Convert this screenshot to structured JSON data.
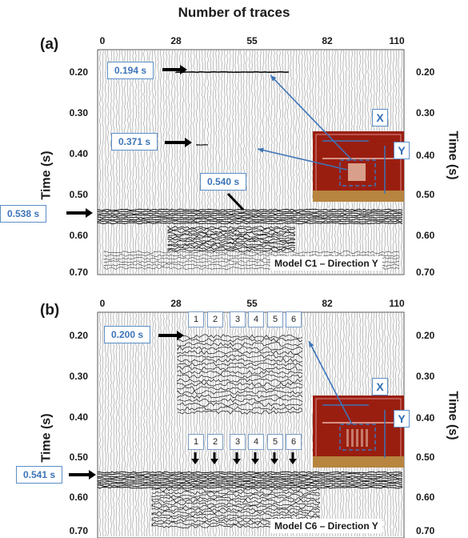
{
  "figure": {
    "title": "Number of traces",
    "x_ticks": [
      "0",
      "28",
      "55",
      "82",
      "110"
    ],
    "y_ticks": [
      "0.20",
      "0.30",
      "0.40",
      "0.50",
      "0.60",
      "0.70"
    ],
    "y_label": "Time (s)",
    "axis_markers": [
      "X",
      "Y"
    ]
  },
  "panel_a": {
    "label": "(a)",
    "caption": "Model C1 – Direction Y",
    "annotations": [
      "0.194 s",
      "0.371 s",
      "0.540 s",
      "0.538 s"
    ]
  },
  "panel_b": {
    "label": "(b)",
    "caption": "Model C6 – Direction Y",
    "annotations": [
      "0.200 s",
      "0.541 s"
    ],
    "numbers": [
      "1",
      "2",
      "3",
      "4",
      "5",
      "6"
    ]
  },
  "colors": {
    "annotation_blue": "#3d74b8",
    "photo_red": "#9a1e10",
    "trace_ink": "#111111"
  }
}
